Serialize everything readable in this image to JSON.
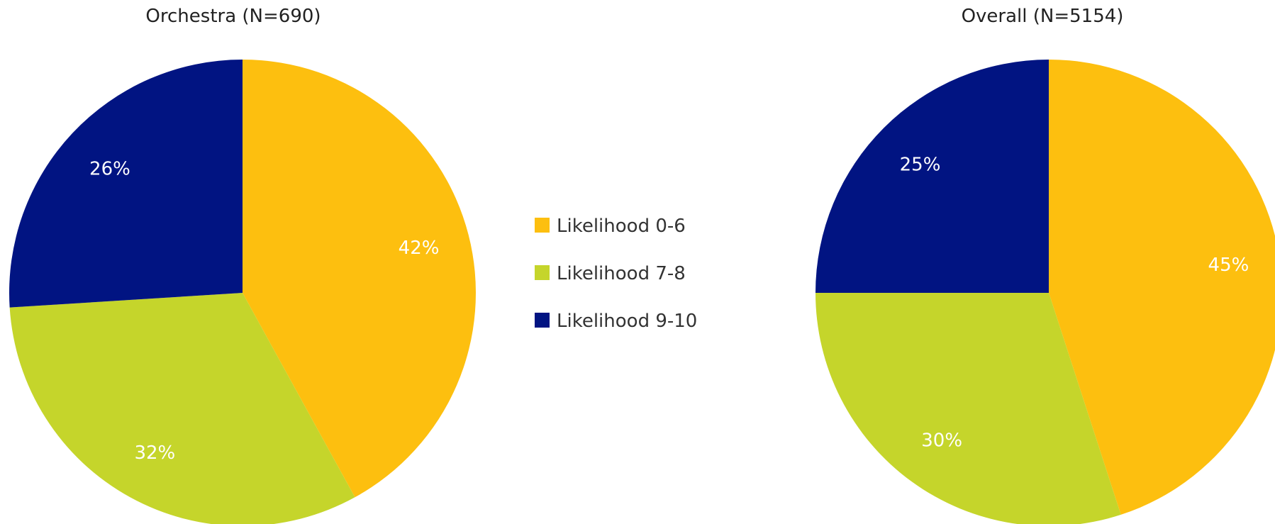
{
  "chart_data": [
    {
      "type": "pie",
      "title": "Orchestra (N=690)",
      "categories": [
        "Likelihood 0-6",
        "Likelihood 7-8",
        "Likelihood 9-10"
      ],
      "values": [
        42,
        32,
        26
      ],
      "labels": [
        "42%",
        "32%",
        "26%"
      ],
      "colors": [
        "#FDBF0F",
        "#C5D52B",
        "#011482"
      ]
    },
    {
      "type": "pie",
      "title": "Overall (N=5154)",
      "categories": [
        "Likelihood 0-6",
        "Likelihood 7-8",
        "Likelihood 9-10"
      ],
      "values": [
        45,
        30,
        25
      ],
      "labels": [
        "45%",
        "30%",
        "25%"
      ],
      "colors": [
        "#FDBF0F",
        "#C5D52B",
        "#011482"
      ]
    }
  ],
  "legend": {
    "placement": "center",
    "items": [
      {
        "label": "Likelihood 0-6",
        "color": "#FDBF0F"
      },
      {
        "label": "Likelihood 7-8",
        "color": "#C5D52B"
      },
      {
        "label": "Likelihood 9-10",
        "color": "#011482"
      }
    ]
  }
}
